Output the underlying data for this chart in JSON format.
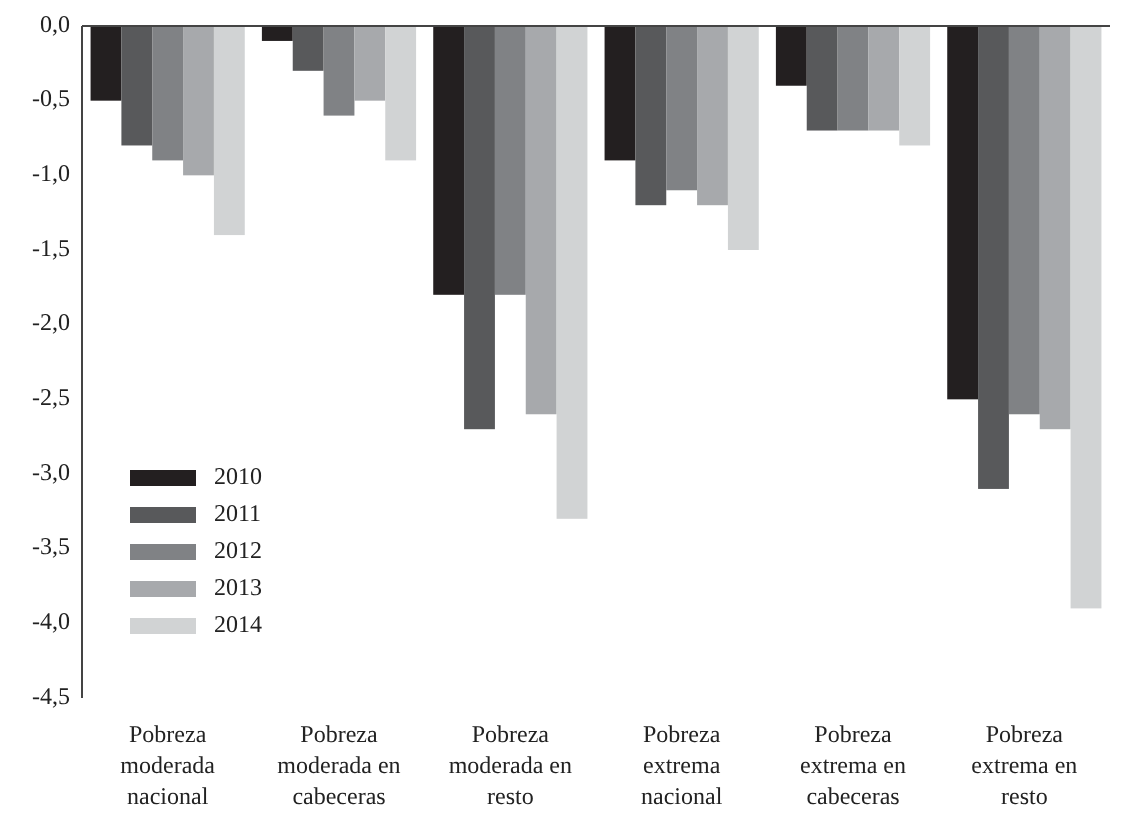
{
  "chart_data": {
    "type": "bar",
    "categories": [
      "Pobreza moderada nacional",
      "Pobreza moderada en cabeceras",
      "Pobreza moderada en resto",
      "Pobreza extrema nacional",
      "Pobreza extrema en cabeceras",
      "Pobreza extrema en resto"
    ],
    "series": [
      {
        "name": "2010",
        "color": "#231f20",
        "values": [
          -0.5,
          -0.1,
          -1.8,
          -0.9,
          -0.4,
          -2.5
        ]
      },
      {
        "name": "2011",
        "color": "#58595b",
        "values": [
          -0.8,
          -0.3,
          -2.7,
          -1.2,
          -0.7,
          -3.1
        ]
      },
      {
        "name": "2012",
        "color": "#808285",
        "values": [
          -0.9,
          -0.6,
          -1.8,
          -1.1,
          -0.7,
          -2.6
        ]
      },
      {
        "name": "2013",
        "color": "#a7a9ac",
        "values": [
          -1.0,
          -0.5,
          -2.6,
          -1.2,
          -0.7,
          -2.7
        ]
      },
      {
        "name": "2014",
        "color": "#d1d3d4",
        "values": [
          -1.4,
          -0.9,
          -3.3,
          -1.5,
          -0.8,
          -3.9
        ]
      }
    ],
    "ylim": [
      -4.5,
      0
    ],
    "yticks": [
      {
        "value": 0,
        "label": "0,0"
      },
      {
        "value": -0.5,
        "label": "-0,5"
      },
      {
        "value": -1,
        "label": "-1,0"
      },
      {
        "value": -1.5,
        "label": "-1,5"
      },
      {
        "value": -2,
        "label": "-2,0"
      },
      {
        "value": -2.5,
        "label": "-2,5"
      },
      {
        "value": -3,
        "label": "-3,0"
      },
      {
        "value": -3.5,
        "label": "-3,5"
      },
      {
        "value": -4,
        "label": "-4,0"
      },
      {
        "value": -4.5,
        "label": "-4,5"
      }
    ],
    "grid": false,
    "legend": "bottom left"
  }
}
